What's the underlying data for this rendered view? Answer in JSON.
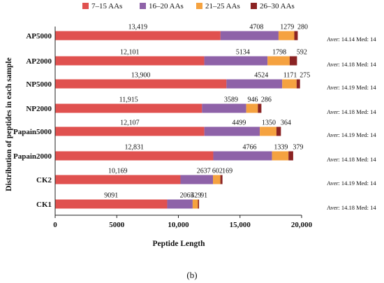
{
  "chart_data": {
    "type": "bar",
    "orientation": "horizontal",
    "stacked": true,
    "categories": [
      "AP5000",
      "AP2000",
      "NP5000",
      "NP2000",
      "Papain5000",
      "Papain2000",
      "CK2",
      "CK1"
    ],
    "series": [
      {
        "name": "7–15 AAs",
        "color": "#e0514f",
        "values": [
          13419,
          12101,
          13900,
          11915,
          12107,
          12831,
          10169,
          9091
        ],
        "labels": [
          "13,419",
          "12,101",
          "13,900",
          "11,915",
          "12,107",
          "12,831",
          "10,169",
          "9091"
        ]
      },
      {
        "name": "16–20 AAs",
        "color": "#8e62a8",
        "values": [
          4708,
          5134,
          4524,
          3589,
          4499,
          4766,
          2637,
          2065
        ],
        "labels": [
          "4708",
          "5134",
          "4524",
          "3589",
          "4499",
          "4766",
          "2637",
          "2065"
        ]
      },
      {
        "name": "21–25 AAs",
        "color": "#f5a240",
        "values": [
          1279,
          1798,
          1171,
          946,
          1350,
          1339,
          602,
          429
        ],
        "labels": [
          "1279",
          "1798",
          "1171",
          "946",
          "1350",
          "1339",
          "602",
          "429"
        ]
      },
      {
        "name": "26–30 AAs",
        "color": "#8b2323",
        "values": [
          280,
          592,
          275,
          286,
          364,
          379,
          169,
          91
        ],
        "labels": [
          "280",
          "592",
          "275",
          "286",
          "364",
          "379",
          "169",
          "91"
        ]
      }
    ],
    "stats": [
      "Aver: 14.14 Med: 14",
      "Aver: 14.18 Med: 14",
      "Aver: 14.19 Med: 14",
      "Aver: 14.18 Med: 14",
      "Aver: 14.19 Med: 14",
      "Aver: 14.18 Med: 14",
      "Aver: 14.19 Med: 14",
      "Aver: 14.18 Med: 14"
    ],
    "xlabel": "Peptide Length",
    "ylabel": "Distribution of peptides in each sample",
    "xlim": [
      0,
      20000
    ],
    "xticks": [
      0,
      5000,
      10000,
      15000,
      20000
    ],
    "xtick_labels": [
      "0",
      "5000",
      "10,000",
      "15,000",
      "20,000"
    ],
    "grid": false,
    "legend_position": "top"
  },
  "caption": "(b)"
}
